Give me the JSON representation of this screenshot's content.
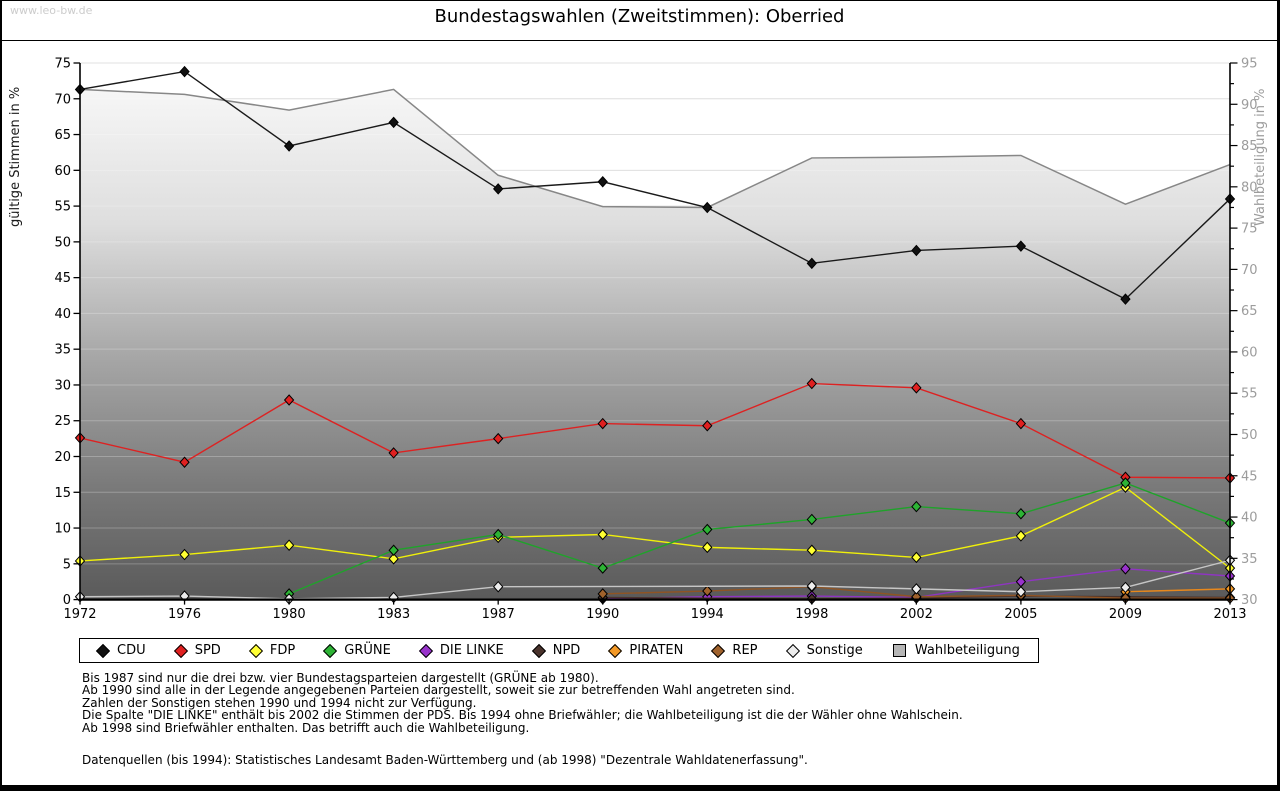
{
  "watermark": "www.leo-bw.de",
  "title": "Bundestagswahlen (Zweitstimmen): Oberried",
  "legend": {
    "items": [
      {
        "label": "CDU",
        "color": "#111111",
        "shape": "diamond"
      },
      {
        "label": "SPD",
        "color": "#e02020",
        "shape": "diamond"
      },
      {
        "label": "FDP",
        "color": "#ffff33",
        "shape": "diamond"
      },
      {
        "label": "GRÜNE",
        "color": "#2db335",
        "shape": "diamond"
      },
      {
        "label": "DIE LINKE",
        "color": "#9933cc",
        "shape": "diamond"
      },
      {
        "label": "NPD",
        "color": "#4a332c",
        "shape": "diamond"
      },
      {
        "label": "PIRATEN",
        "color": "#f59a26",
        "shape": "diamond"
      },
      {
        "label": "REP",
        "color": "#a0622c",
        "shape": "diamond"
      },
      {
        "label": "Sonstige",
        "color": "#ededed",
        "shape": "diamond"
      },
      {
        "label": "Wahlbeteiligung",
        "color": "#b6b6b6",
        "shape": "square"
      }
    ]
  },
  "footnotes": [
    "Bis 1987 sind nur die drei bzw. vier Bundestagsparteien dargestellt (GRÜNE ab 1980).",
    "Ab 1990 sind alle in der Legende angegebenen Parteien dargestellt, soweit sie zur betreffenden Wahl angetreten sind.",
    "Zahlen der Sonstigen stehen 1990 und 1994 nicht zur Verfügung.",
    "Die Spalte \"DIE LINKE\" enthält bis 2002 die Stimmen der PDS. Bis 1994 ohne Briefwähler; die Wahlbeteiligung ist die der Wähler ohne Wahlschein.",
    "Ab 1998 sind Briefwähler enthalten. Das betrifft auch die Wahlbeteiligung."
  ],
  "source_line": "Datenquellen (bis 1994): Statistisches Landesamt Baden-Württemberg und (ab 1998) \"Dezentrale Wahldatenerfassung\".",
  "chart_data": {
    "type": "line",
    "title": "Bundestagswahlen (Zweitstimmen): Oberried",
    "categories": [
      1972,
      1976,
      1980,
      1983,
      1987,
      1990,
      1994,
      1998,
      2002,
      2005,
      2009,
      2013
    ],
    "left_axis": {
      "label": "gültige Stimmen in %",
      "min": 0,
      "max": 75,
      "tick_step": 5
    },
    "right_axis": {
      "label": "Wahlbeteiligung in %",
      "min": 30,
      "max": 95,
      "tick_step": 5,
      "minor_step": 2.5
    },
    "grid": true,
    "legend_position": "bottom",
    "series": [
      {
        "name": "CDU",
        "axis": "left",
        "kind": "line",
        "color": "#1a1a1a",
        "marker": "#111111",
        "values": [
          71.3,
          73.8,
          63.4,
          66.7,
          57.4,
          58.4,
          54.8,
          47.0,
          48.8,
          49.4,
          42.0,
          56.0
        ]
      },
      {
        "name": "SPD",
        "axis": "left",
        "kind": "line",
        "color": "#dd2222",
        "marker": "#e02020",
        "values": [
          22.6,
          19.2,
          27.9,
          20.5,
          22.5,
          24.6,
          24.3,
          30.2,
          29.6,
          24.6,
          17.1,
          17.0
        ]
      },
      {
        "name": "FDP",
        "axis": "left",
        "kind": "line",
        "color": "#f0f00a",
        "marker": "#ffff33",
        "values": [
          5.4,
          6.3,
          7.6,
          5.7,
          8.7,
          9.1,
          7.3,
          6.9,
          5.9,
          8.9,
          15.7,
          4.4
        ]
      },
      {
        "name": "GRÜNE",
        "axis": "left",
        "kind": "line",
        "color": "#1fa32a",
        "marker": "#2db335",
        "values": [
          null,
          null,
          0.8,
          6.9,
          9.1,
          4.4,
          9.8,
          11.2,
          13.0,
          12.0,
          16.3,
          10.7
        ]
      },
      {
        "name": "DIE LINKE",
        "axis": "left",
        "kind": "line",
        "color": "#8f35c2",
        "marker": "#9933cc",
        "values": [
          null,
          null,
          null,
          null,
          null,
          0.1,
          0.4,
          0.5,
          0.3,
          2.5,
          4.3,
          3.3
        ]
      },
      {
        "name": "NPD",
        "axis": "left",
        "kind": "line",
        "color": "#4a332c",
        "marker": "#4a332c",
        "values": [
          null,
          null,
          null,
          null,
          null,
          0.3,
          null,
          0.1,
          0.2,
          0.5,
          0.4,
          0.3
        ]
      },
      {
        "name": "PIRATEN",
        "axis": "left",
        "kind": "line",
        "color": "#e8881c",
        "marker": "#f59a26",
        "values": [
          null,
          null,
          null,
          null,
          null,
          null,
          null,
          null,
          null,
          null,
          1.1,
          1.5
        ]
      },
      {
        "name": "REP",
        "axis": "left",
        "kind": "line",
        "color": "#8f5424",
        "marker": "#a0622c",
        "values": [
          null,
          null,
          null,
          null,
          null,
          0.8,
          1.2,
          1.8,
          0.4,
          0.6,
          0.2,
          0.2
        ]
      },
      {
        "name": "Sonstige",
        "axis": "left",
        "kind": "line",
        "color": "#c6c6c6",
        "marker": "#ededed",
        "values": [
          0.4,
          0.5,
          0.1,
          0.3,
          1.8,
          null,
          null,
          1.9,
          1.5,
          1.1,
          1.7,
          5.5
        ]
      },
      {
        "name": "Wahlbeteiligung",
        "axis": "right",
        "kind": "area",
        "color": "#878787",
        "marker": "#b6b6b6",
        "values": [
          91.8,
          91.2,
          89.3,
          91.8,
          81.4,
          77.6,
          77.5,
          83.5,
          83.6,
          83.8,
          77.9,
          82.7
        ]
      }
    ]
  }
}
